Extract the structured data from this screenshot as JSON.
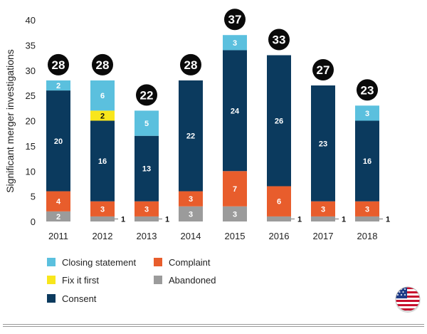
{
  "chart_data": {
    "type": "bar",
    "stacked": true,
    "ylabel": "Significant merger investigations",
    "ylim": [
      0,
      40
    ],
    "yticks": [
      0,
      5,
      10,
      15,
      20,
      25,
      30,
      35,
      40
    ],
    "grid": false,
    "legend_position": "bottom-left",
    "categories": [
      "2011",
      "2012",
      "2013",
      "2014",
      "2015",
      "2016",
      "2017",
      "2018"
    ],
    "totals": [
      28,
      28,
      22,
      28,
      37,
      33,
      27,
      23
    ],
    "series": [
      {
        "name": "Abandoned",
        "color": "#9b9b9b",
        "values": [
          2,
          1,
          1,
          3,
          3,
          1,
          1,
          1
        ]
      },
      {
        "name": "Complaint",
        "color": "#e85d2c",
        "values": [
          4,
          3,
          3,
          3,
          7,
          6,
          3,
          3
        ]
      },
      {
        "name": "Consent",
        "color": "#0b3a5e",
        "values": [
          20,
          16,
          13,
          22,
          24,
          26,
          23,
          16
        ]
      },
      {
        "name": "Fix it first",
        "color": "#f8e61c",
        "values": [
          0,
          2,
          0,
          0,
          0,
          0,
          0,
          0
        ]
      },
      {
        "name": "Closing statement",
        "color": "#5bc0de",
        "values": [
          2,
          6,
          5,
          0,
          3,
          0,
          0,
          3
        ]
      }
    ]
  },
  "legend": {
    "items": [
      {
        "label": "Closing statement",
        "color": "#5bc0de"
      },
      {
        "label": "Complaint",
        "color": "#e85d2c"
      },
      {
        "label": "Fix it first",
        "color": "#f8e61c"
      },
      {
        "label": "Abandoned",
        "color": "#9b9b9b"
      },
      {
        "label": "Consent",
        "color": "#0b3a5e"
      }
    ]
  },
  "flag": {
    "icon": "us-flag-icon"
  }
}
